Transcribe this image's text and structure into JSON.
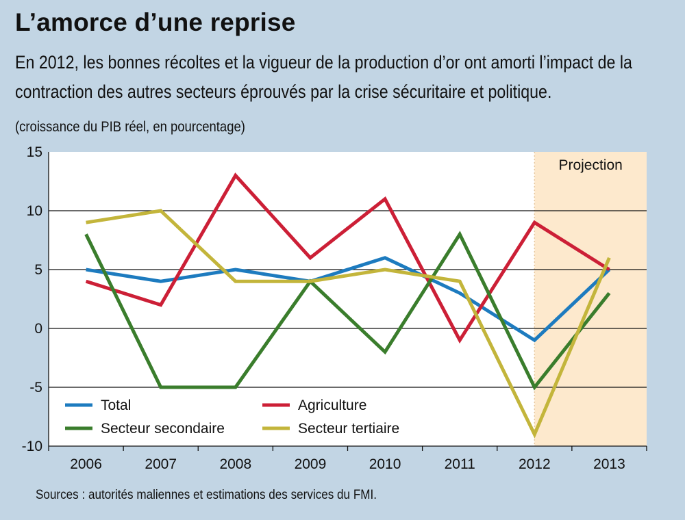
{
  "header": {
    "title": "L’amorce d’une reprise",
    "subtitle": "En 2012, les bonnes récoltes et la vigueur de la production d’or ont amorti l’impact de la contraction des autres secteurs éprouvés par la crise sécuritaire et politique.",
    "unit_note": "(croissance du PIB réel, en pourcentage)"
  },
  "footer": {
    "source": "Sources : autorités maliennes et estimations des services du FMI."
  },
  "colors": {
    "background": "#c2d5e4",
    "plot_background": "#ffffff",
    "projection_shade": "#fde9cd",
    "total": "#1d7bbf",
    "agriculture": "#cc1f36",
    "secondaire": "#3a7d2c",
    "tertiaire": "#c3b53b"
  },
  "chart_data": {
    "type": "line",
    "title": "L’amorce d’une reprise",
    "xlabel": "",
    "ylabel": "(croissance du PIB réel, en pourcentage)",
    "categories": [
      "2006",
      "2007",
      "2008",
      "2009",
      "2010",
      "2011",
      "2012",
      "2013"
    ],
    "ylim": [
      -10,
      15
    ],
    "yticks": [
      15,
      10,
      5,
      0,
      -5,
      -10
    ],
    "grid": "horizontal",
    "projection": {
      "label": "Projection",
      "from": "2012",
      "to": "2013"
    },
    "legend_position": "bottom-left",
    "series": [
      {
        "name": "Total",
        "color_key": "total",
        "values": [
          5,
          4,
          5,
          4,
          6,
          3,
          -1,
          5
        ]
      },
      {
        "name": "Agriculture",
        "color_key": "agriculture",
        "values": [
          4,
          2,
          13,
          6,
          11,
          -1,
          9,
          5
        ]
      },
      {
        "name": "Secteur secondaire",
        "color_key": "secondaire",
        "values": [
          8,
          -5,
          -5,
          4,
          -2,
          8,
          -5,
          3
        ]
      },
      {
        "name": "Secteur tertiaire",
        "color_key": "tertiaire",
        "values": [
          9,
          10,
          4,
          4,
          5,
          4,
          -9,
          6
        ]
      }
    ]
  }
}
